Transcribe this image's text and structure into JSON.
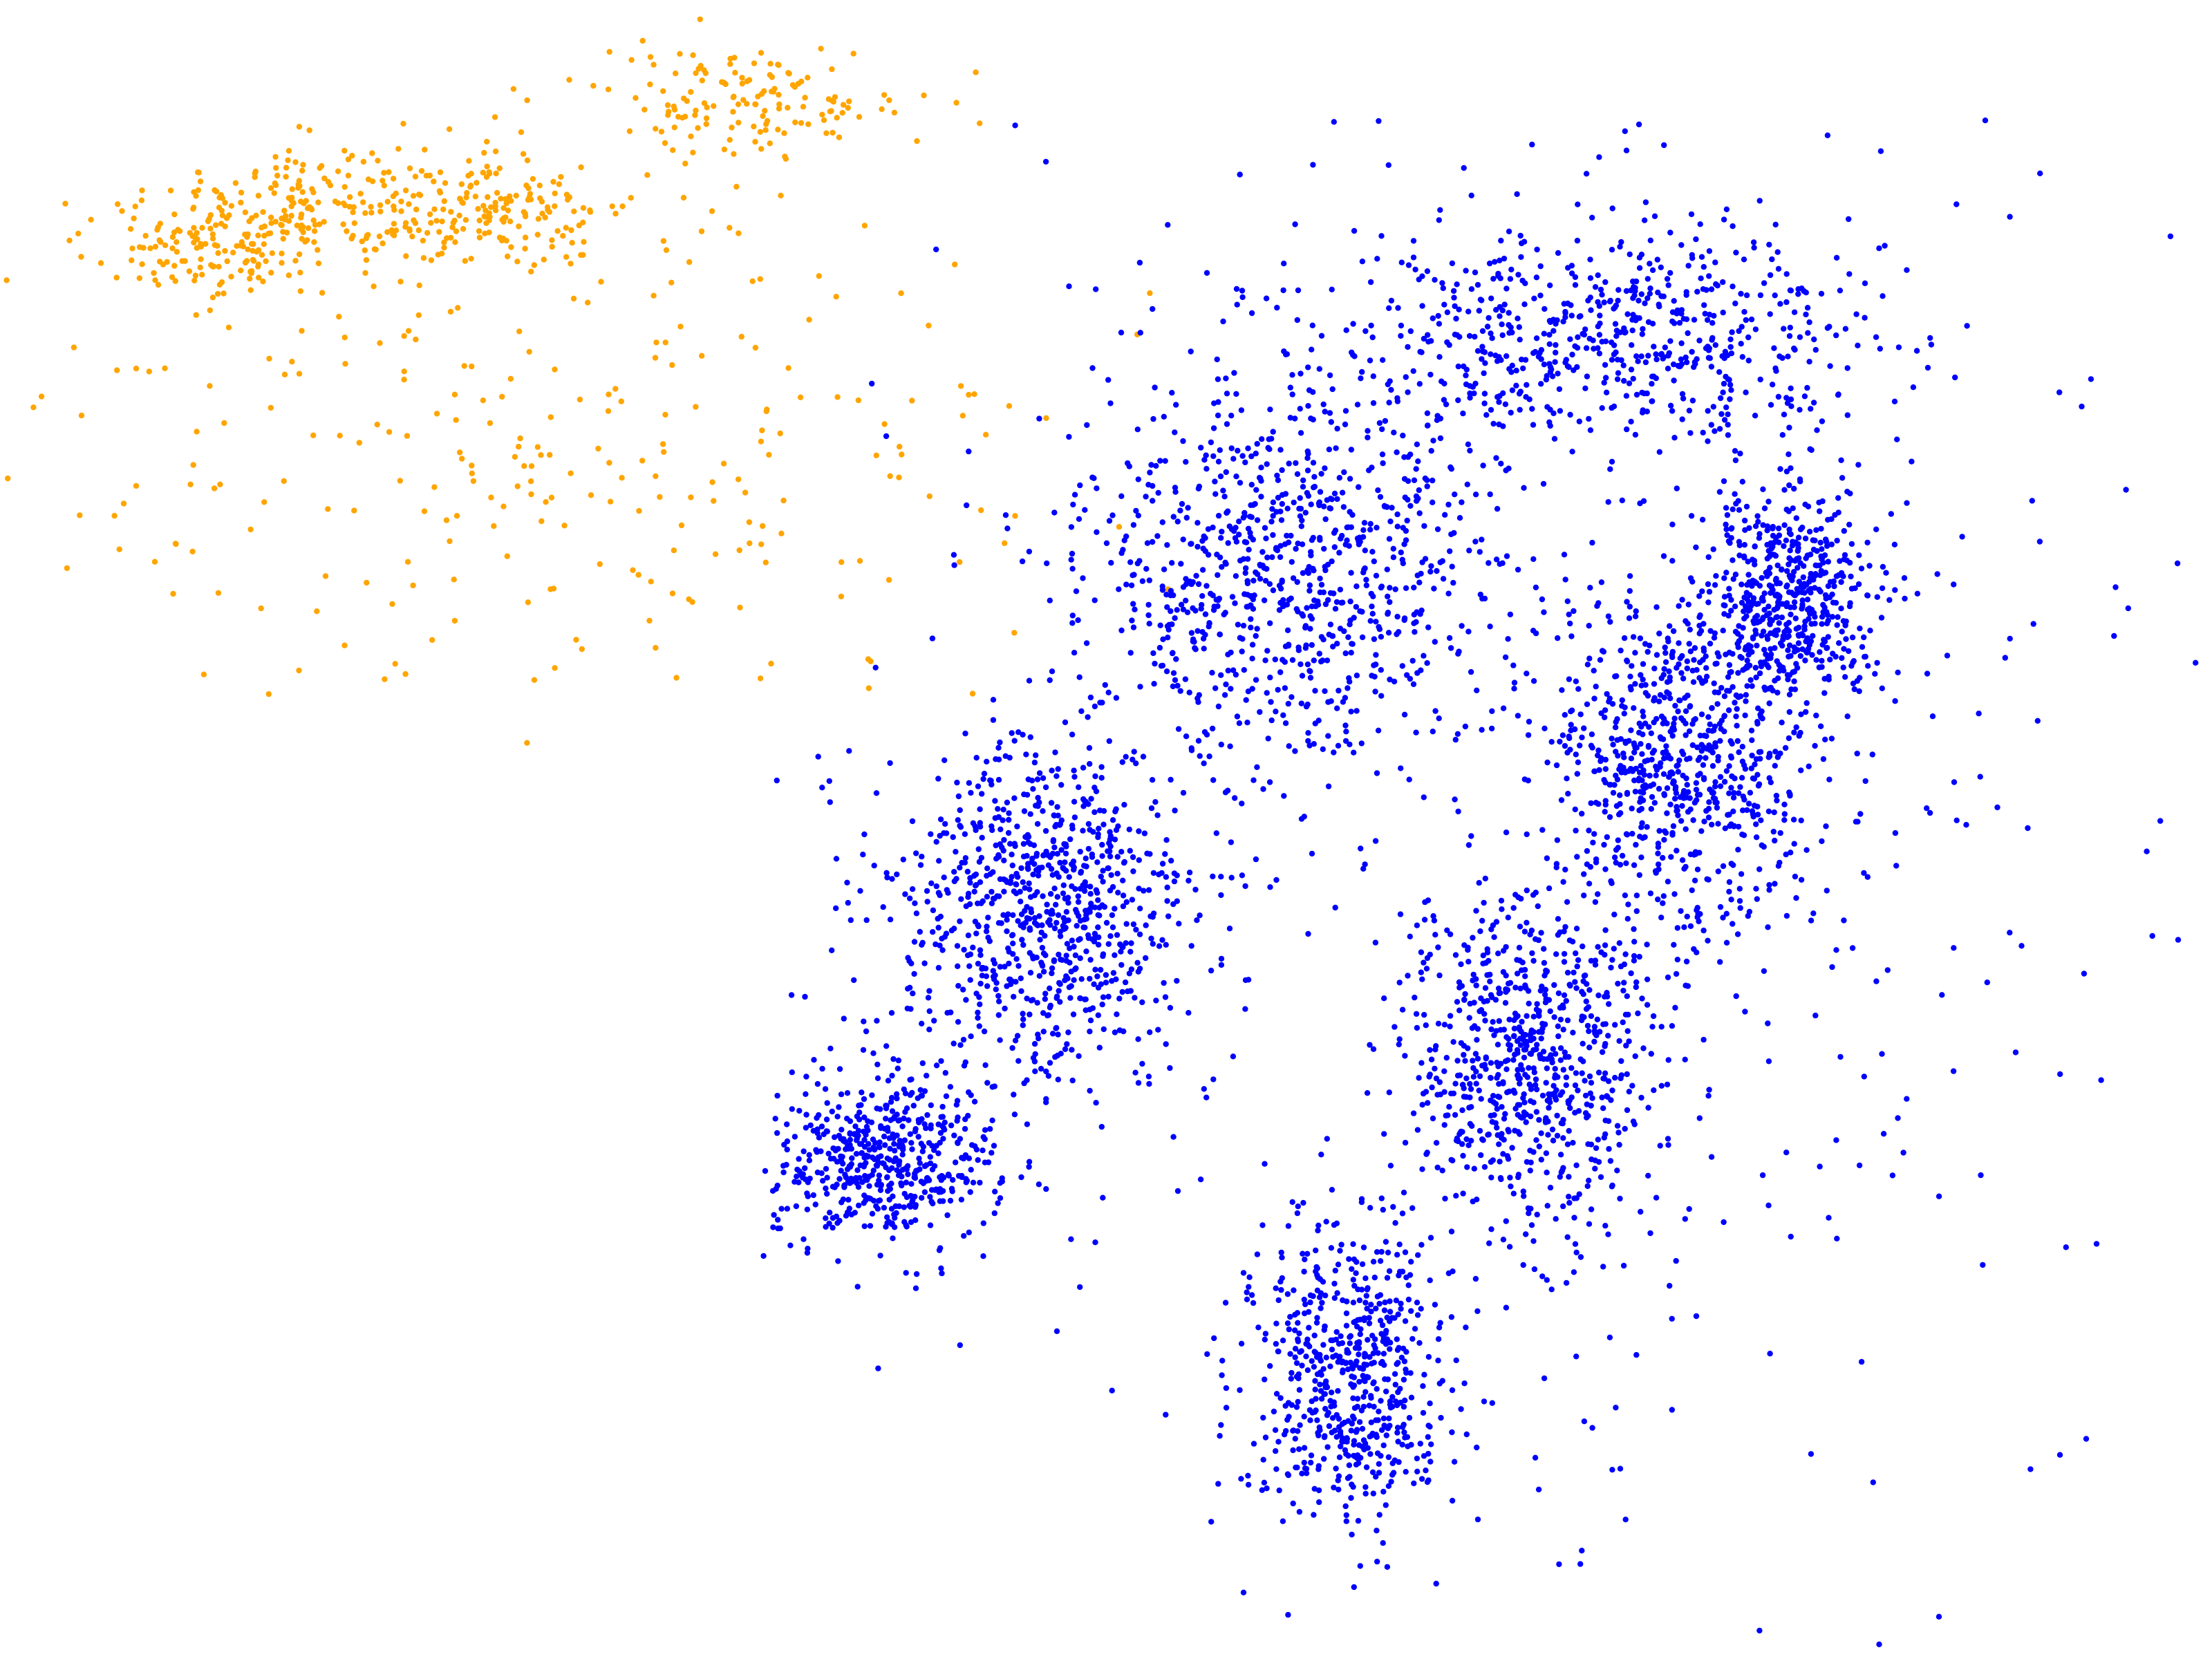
{
  "chart_data": {
    "type": "scatter",
    "title": "",
    "xlabel": "",
    "ylabel": "",
    "axes_visible": false,
    "grid": false,
    "legend": "none",
    "xlim": [
      0,
      100
    ],
    "ylim": [
      0,
      100
    ],
    "series": [
      {
        "color": "#FFA500",
        "marker": "dot",
        "approx_point_count": 900,
        "shape": "sparse elongated cloud, densest along a diagonal band",
        "density_profile": [
          {
            "x": 9.0,
            "y": 85.0,
            "spread_x": 2.5,
            "spread_y": 1.4,
            "share": 0.12
          },
          {
            "x": 14.0,
            "y": 87.5,
            "spread_x": 3.5,
            "spread_y": 1.8,
            "share": 0.2
          },
          {
            "x": 22.0,
            "y": 87.5,
            "spread_x": 3.5,
            "spread_y": 1.8,
            "share": 0.2
          },
          {
            "x": 34.0,
            "y": 94.0,
            "spread_x": 3.5,
            "spread_y": 1.6,
            "share": 0.16
          },
          {
            "x": 25.0,
            "y": 74.0,
            "spread_x": 12.0,
            "spread_y": 8.0,
            "share": 0.32
          }
        ],
        "x_range": [
          0.0,
          58.0
        ],
        "y_range": [
          55.0,
          100.0
        ]
      },
      {
        "color": "#0000FF",
        "marker": "dot",
        "approx_point_count": 6000,
        "shape": "dense ring-shaped cloud with elongated lobes",
        "density_profile": [
          {
            "x": 40.0,
            "y": 30.0,
            "spread_x": 2.5,
            "spread_y": 2.5,
            "share": 0.09
          },
          {
            "x": 47.0,
            "y": 45.0,
            "spread_x": 3.5,
            "spread_y": 5.0,
            "share": 0.14
          },
          {
            "x": 58.0,
            "y": 66.0,
            "spread_x": 4.5,
            "spread_y": 6.0,
            "share": 0.14
          },
          {
            "x": 73.0,
            "y": 80.0,
            "spread_x": 6.0,
            "spread_y": 3.0,
            "share": 0.1
          },
          {
            "x": 81.0,
            "y": 64.0,
            "spread_x": 2.0,
            "spread_y": 3.0,
            "share": 0.09
          },
          {
            "x": 76.0,
            "y": 54.0,
            "spread_x": 2.8,
            "spread_y": 5.0,
            "share": 0.12
          },
          {
            "x": 69.0,
            "y": 36.0,
            "spread_x": 2.8,
            "spread_y": 5.0,
            "share": 0.12
          },
          {
            "x": 61.0,
            "y": 17.0,
            "spread_x": 2.2,
            "spread_y": 4.5,
            "share": 0.1
          },
          {
            "x": 70.0,
            "y": 55.0,
            "spread_x": 16.0,
            "spread_y": 24.0,
            "share": 0.1
          }
        ],
        "x_range": [
          34.5,
          100.0
        ],
        "y_range": [
          0.0,
          93.0
        ]
      }
    ]
  }
}
